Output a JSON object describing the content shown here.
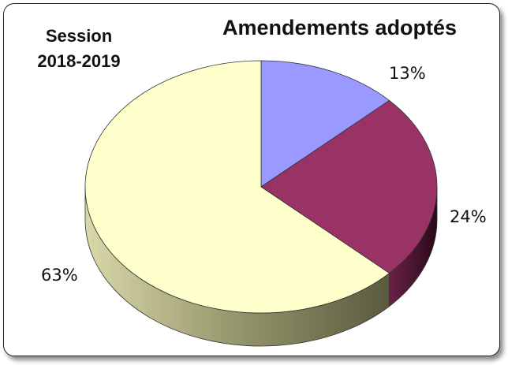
{
  "chart_data": {
    "type": "pie",
    "title": "Amendements adoptés",
    "subtitle": [
      "Session",
      "2018-2019"
    ],
    "slices": [
      {
        "label": "13%",
        "value": 13,
        "color": "#9999ff",
        "side_color": "#5a5ab0"
      },
      {
        "label": "24%",
        "value": 24,
        "color": "#993366",
        "side_color": "#4a1530"
      },
      {
        "label": "63%",
        "value": 63,
        "color": "#ffffcc",
        "side_color": "#a8a87a"
      }
    ],
    "legend": "none",
    "style": "3d"
  }
}
